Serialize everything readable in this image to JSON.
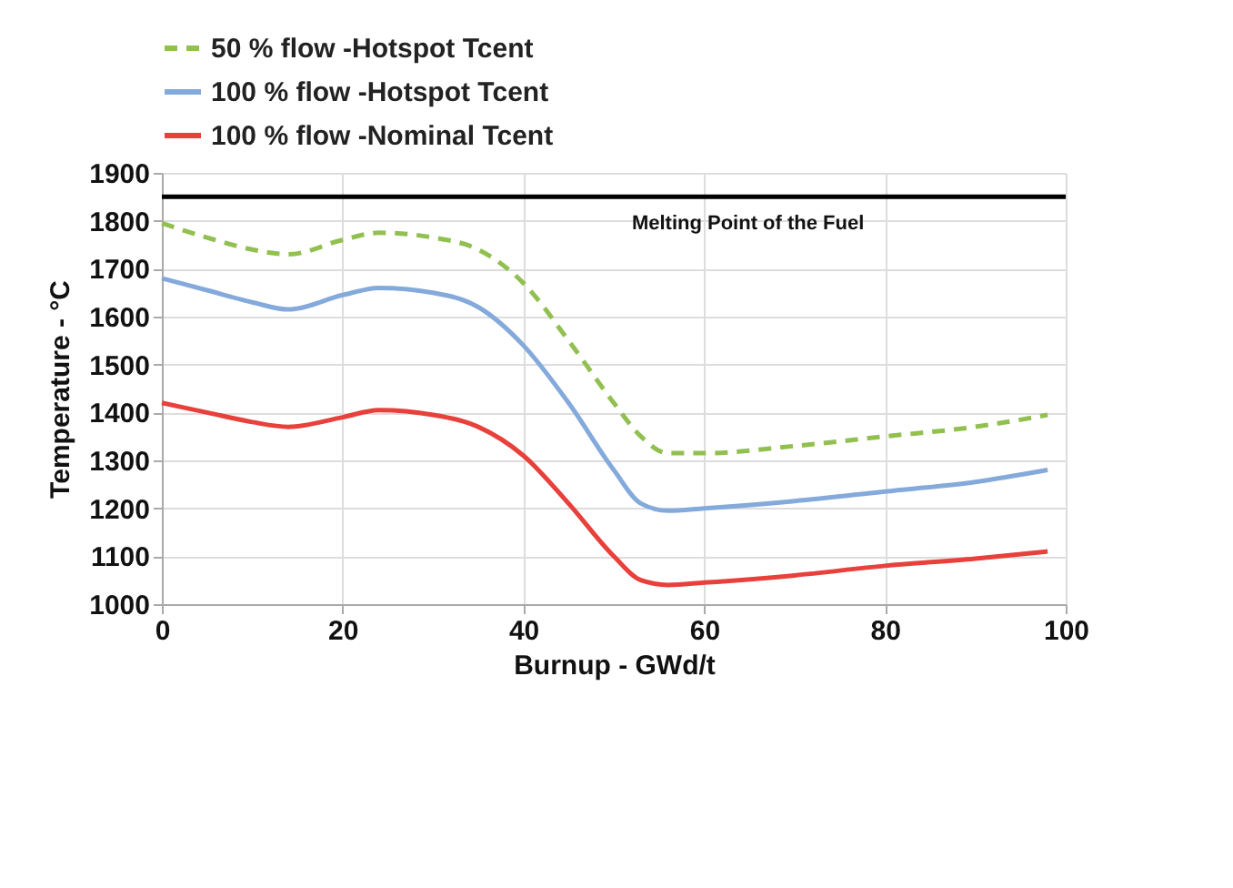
{
  "chart_data": {
    "type": "line",
    "xlabel": "Burnup - GWd/t",
    "ylabel": "Temperature - °C",
    "xlim": [
      0,
      100
    ],
    "xticks": [
      0,
      20,
      40,
      60,
      80,
      100
    ],
    "ylim": [
      1000,
      1900
    ],
    "yticks": [
      1000,
      1100,
      1200,
      1300,
      1400,
      1500,
      1600,
      1700,
      1800,
      1900
    ],
    "grid": true,
    "legend": "top",
    "marker": "none",
    "x": [
      0,
      5,
      10,
      14,
      20,
      24,
      30,
      35,
      40,
      45,
      50,
      53,
      56,
      60,
      70,
      80,
      90,
      98
    ],
    "series": [
      {
        "name": "50 % flow -Hotspot Tcent",
        "color": "#92c050",
        "line_style": "dashed",
        "values": [
          1795,
          1765,
          1740,
          1730,
          1760,
          1775,
          1765,
          1740,
          1670,
          1550,
          1420,
          1350,
          1315,
          1315,
          1330,
          1350,
          1370,
          1395
        ]
      },
      {
        "name": "100 % flow -Hotspot Tcent",
        "color": "#84a9db",
        "line_style": "solid",
        "values": [
          1680,
          1655,
          1630,
          1615,
          1645,
          1660,
          1650,
          1620,
          1540,
          1420,
          1280,
          1210,
          1195,
          1200,
          1215,
          1235,
          1255,
          1280
        ]
      },
      {
        "name": "100 % flow -Nominal Tcent",
        "color": "#e8403a",
        "line_style": "solid",
        "values": [
          1420,
          1400,
          1380,
          1370,
          1390,
          1405,
          1395,
          1370,
          1310,
          1210,
          1100,
          1050,
          1040,
          1045,
          1060,
          1080,
          1095,
          1110
        ]
      }
    ],
    "ref_lines": [
      {
        "axis": "y",
        "value": 1850,
        "label": "Melting Point of the Fuel",
        "color": "#000000"
      }
    ]
  }
}
